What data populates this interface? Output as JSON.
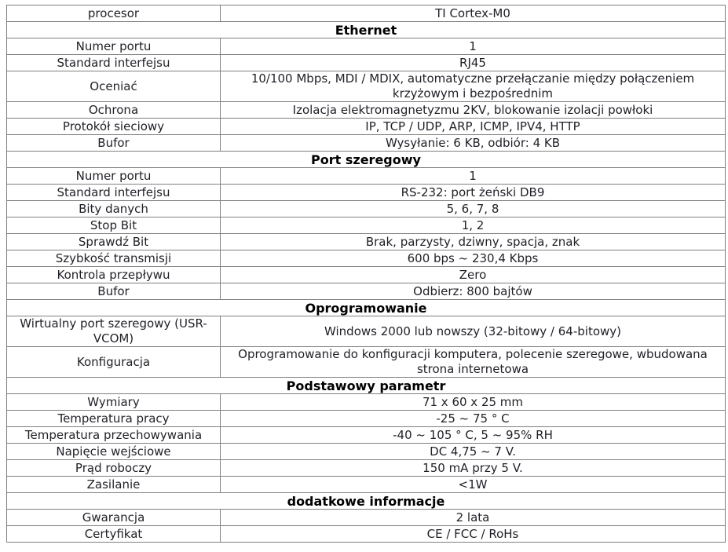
{
  "table": {
    "border_color": "#7f7f7f",
    "text_color": "#1f2027",
    "section_text_color": "#000000",
    "background_color": "#ffffff",
    "rows": [
      {
        "type": "pair",
        "label": "procesor",
        "value": "TI Cortex-M0"
      },
      {
        "type": "section",
        "title": "Ethernet"
      },
      {
        "type": "pair",
        "label": "Numer portu",
        "value": "1"
      },
      {
        "type": "pair",
        "label": "Standard interfejsu",
        "value": "RJ45"
      },
      {
        "type": "pair",
        "label": "Oceniać",
        "value": "10/100 Mbps, MDI / MDIX, automatyczne przełączanie między połączeniem krzyżowym i bezpośrednim"
      },
      {
        "type": "pair",
        "label": "Ochrona",
        "value": "Izolacja elektromagnetyzmu 2KV, blokowanie izolacji powłoki"
      },
      {
        "type": "pair",
        "label": "Protokół sieciowy",
        "value": "IP, TCP / UDP, ARP, ICMP, IPV4, HTTP"
      },
      {
        "type": "pair",
        "label": "Bufor",
        "value": "Wysyłanie: 6 KB, odbiór: 4 KB"
      },
      {
        "type": "section",
        "title": "Port szeregowy"
      },
      {
        "type": "pair",
        "label": "Numer portu",
        "value": "1"
      },
      {
        "type": "pair",
        "label": "Standard interfejsu",
        "value": "RS-232: port żeński DB9"
      },
      {
        "type": "pair",
        "label": "Bity danych",
        "value": "5, 6, 7, 8"
      },
      {
        "type": "pair",
        "label": "Stop Bit",
        "value": "1, 2"
      },
      {
        "type": "pair",
        "label": "Sprawdź Bit",
        "value": "Brak, parzysty, dziwny, spacja, znak"
      },
      {
        "type": "pair",
        "label": "Szybkość transmisji",
        "value": "600 bps ~ 230,4 Kbps"
      },
      {
        "type": "pair",
        "label": "Kontrola przepływu",
        "value": "Zero"
      },
      {
        "type": "pair",
        "label": "Bufor",
        "value": "Odbierz: 800 bajtów"
      },
      {
        "type": "section",
        "title": "Oprogramowanie"
      },
      {
        "type": "pair",
        "label": "Wirtualny port szeregowy  (USR-VCOM)",
        "value": "Windows 2000 lub nowszy (32-bitowy / 64-bitowy)"
      },
      {
        "type": "pair",
        "label": "Konfiguracja",
        "value": "Oprogramowanie do konfiguracji komputera, polecenie szeregowe, wbudowana strona internetowa"
      },
      {
        "type": "section",
        "title": "Podstawowy parametr"
      },
      {
        "type": "pair",
        "label": "Wymiary",
        "value": "71 x 60 x 25 mm"
      },
      {
        "type": "pair",
        "label": "Temperatura pracy",
        "value": "-25 ~ 75 ° C"
      },
      {
        "type": "pair",
        "label": "Temperatura przechowywania",
        "value": "-40 ~ 105 ° C, 5 ~ 95% RH"
      },
      {
        "type": "pair",
        "label": "Napięcie wejściowe",
        "value": "DC 4,75 ~ 7 V."
      },
      {
        "type": "pair",
        "label": "Prąd roboczy",
        "value": "150 mA przy 5 V."
      },
      {
        "type": "pair",
        "label": "Zasilanie",
        "value": "<1W"
      },
      {
        "type": "section",
        "title": "dodatkowe informacje"
      },
      {
        "type": "pair",
        "label": "Gwarancja",
        "value": "2 lata"
      },
      {
        "type": "pair",
        "label": "Certyfikat",
        "value": "CE / FCC / RoHs"
      }
    ]
  }
}
